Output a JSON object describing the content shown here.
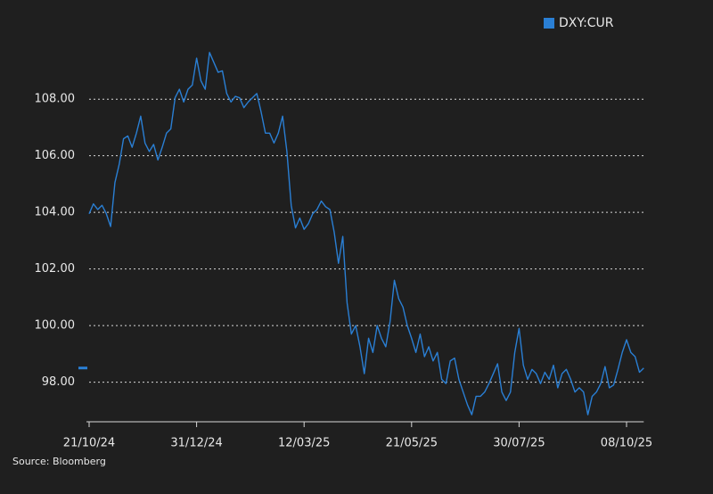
{
  "chart_data": {
    "type": "line",
    "source": "Source: Bloomberg",
    "categories": [
      "21/10/24",
      null,
      null,
      null,
      null,
      null,
      null,
      null,
      null,
      null,
      null,
      null,
      null,
      null,
      null,
      null,
      null,
      null,
      null,
      null,
      null,
      null,
      null,
      null,
      null,
      "31/12/24",
      null,
      null,
      null,
      null,
      null,
      null,
      null,
      null,
      null,
      null,
      null,
      null,
      null,
      null,
      null,
      null,
      null,
      null,
      null,
      null,
      null,
      null,
      null,
      null,
      "12/03/25",
      null,
      null,
      null,
      null,
      null,
      null,
      null,
      null,
      null,
      null,
      null,
      null,
      null,
      null,
      null,
      null,
      null,
      null,
      null,
      null,
      null,
      null,
      null,
      null,
      "21/05/25",
      null,
      null,
      null,
      null,
      null,
      null,
      null,
      null,
      null,
      null,
      null,
      null,
      null,
      null,
      null,
      null,
      null,
      null,
      null,
      null,
      null,
      null,
      null,
      null,
      "30/07/25",
      null,
      null,
      null,
      null,
      null,
      null,
      null,
      null,
      null,
      null,
      null,
      null,
      null,
      null,
      null,
      null,
      null,
      null,
      null,
      null,
      null,
      null,
      null,
      null,
      "08/10/25",
      null,
      null,
      null,
      null
    ],
    "series": [
      {
        "name": "DXY:CUR",
        "color": "#2a7fd4",
        "values": [
          103.95,
          104.3,
          104.1,
          104.25,
          103.95,
          103.5,
          105.05,
          105.7,
          106.6,
          106.7,
          106.3,
          106.8,
          107.4,
          106.45,
          106.15,
          106.4,
          105.85,
          106.3,
          106.8,
          106.95,
          108.05,
          108.35,
          107.9,
          108.35,
          108.5,
          109.45,
          108.65,
          108.35,
          109.65,
          109.3,
          108.95,
          109.0,
          108.2,
          107.9,
          108.1,
          108.05,
          107.7,
          107.9,
          108.05,
          108.2,
          107.55,
          106.8,
          106.8,
          106.45,
          106.8,
          107.4,
          106.15,
          104.25,
          103.45,
          103.8,
          103.4,
          103.6,
          103.95,
          104.1,
          104.4,
          104.2,
          104.1,
          103.3,
          102.2,
          103.15,
          100.8,
          99.7,
          100.0,
          99.25,
          98.3,
          99.55,
          99.05,
          100.0,
          99.55,
          99.25,
          100.15,
          101.6,
          100.95,
          100.65,
          100.0,
          99.55,
          99.05,
          99.7,
          98.9,
          99.25,
          98.75,
          99.05,
          98.1,
          97.95,
          98.75,
          98.85,
          98.1,
          97.65,
          97.2,
          96.85,
          97.5,
          97.5,
          97.65,
          97.95,
          98.3,
          98.65,
          97.65,
          97.35,
          97.65,
          99.05,
          99.9,
          98.6,
          98.1,
          98.45,
          98.3,
          97.95,
          98.35,
          98.1,
          98.6,
          97.8,
          98.3,
          98.45,
          98.1,
          97.65,
          97.8,
          97.65,
          96.85,
          97.5,
          97.65,
          97.95,
          98.55,
          97.8,
          97.9,
          98.45,
          99.05,
          99.5,
          99.05,
          98.9,
          98.35,
          98.5
        ]
      }
    ],
    "ylim": [
      96.6,
      111
    ],
    "yticks": [
      {
        "value": 98,
        "label": "98.00"
      },
      {
        "value": 100,
        "label": "100.00"
      },
      {
        "value": 102,
        "label": "102.00"
      },
      {
        "value": 104,
        "label": "104.00"
      },
      {
        "value": 106,
        "label": "106.00"
      },
      {
        "value": 108,
        "label": "108.00"
      }
    ],
    "grid": true,
    "legend": "top-right"
  }
}
